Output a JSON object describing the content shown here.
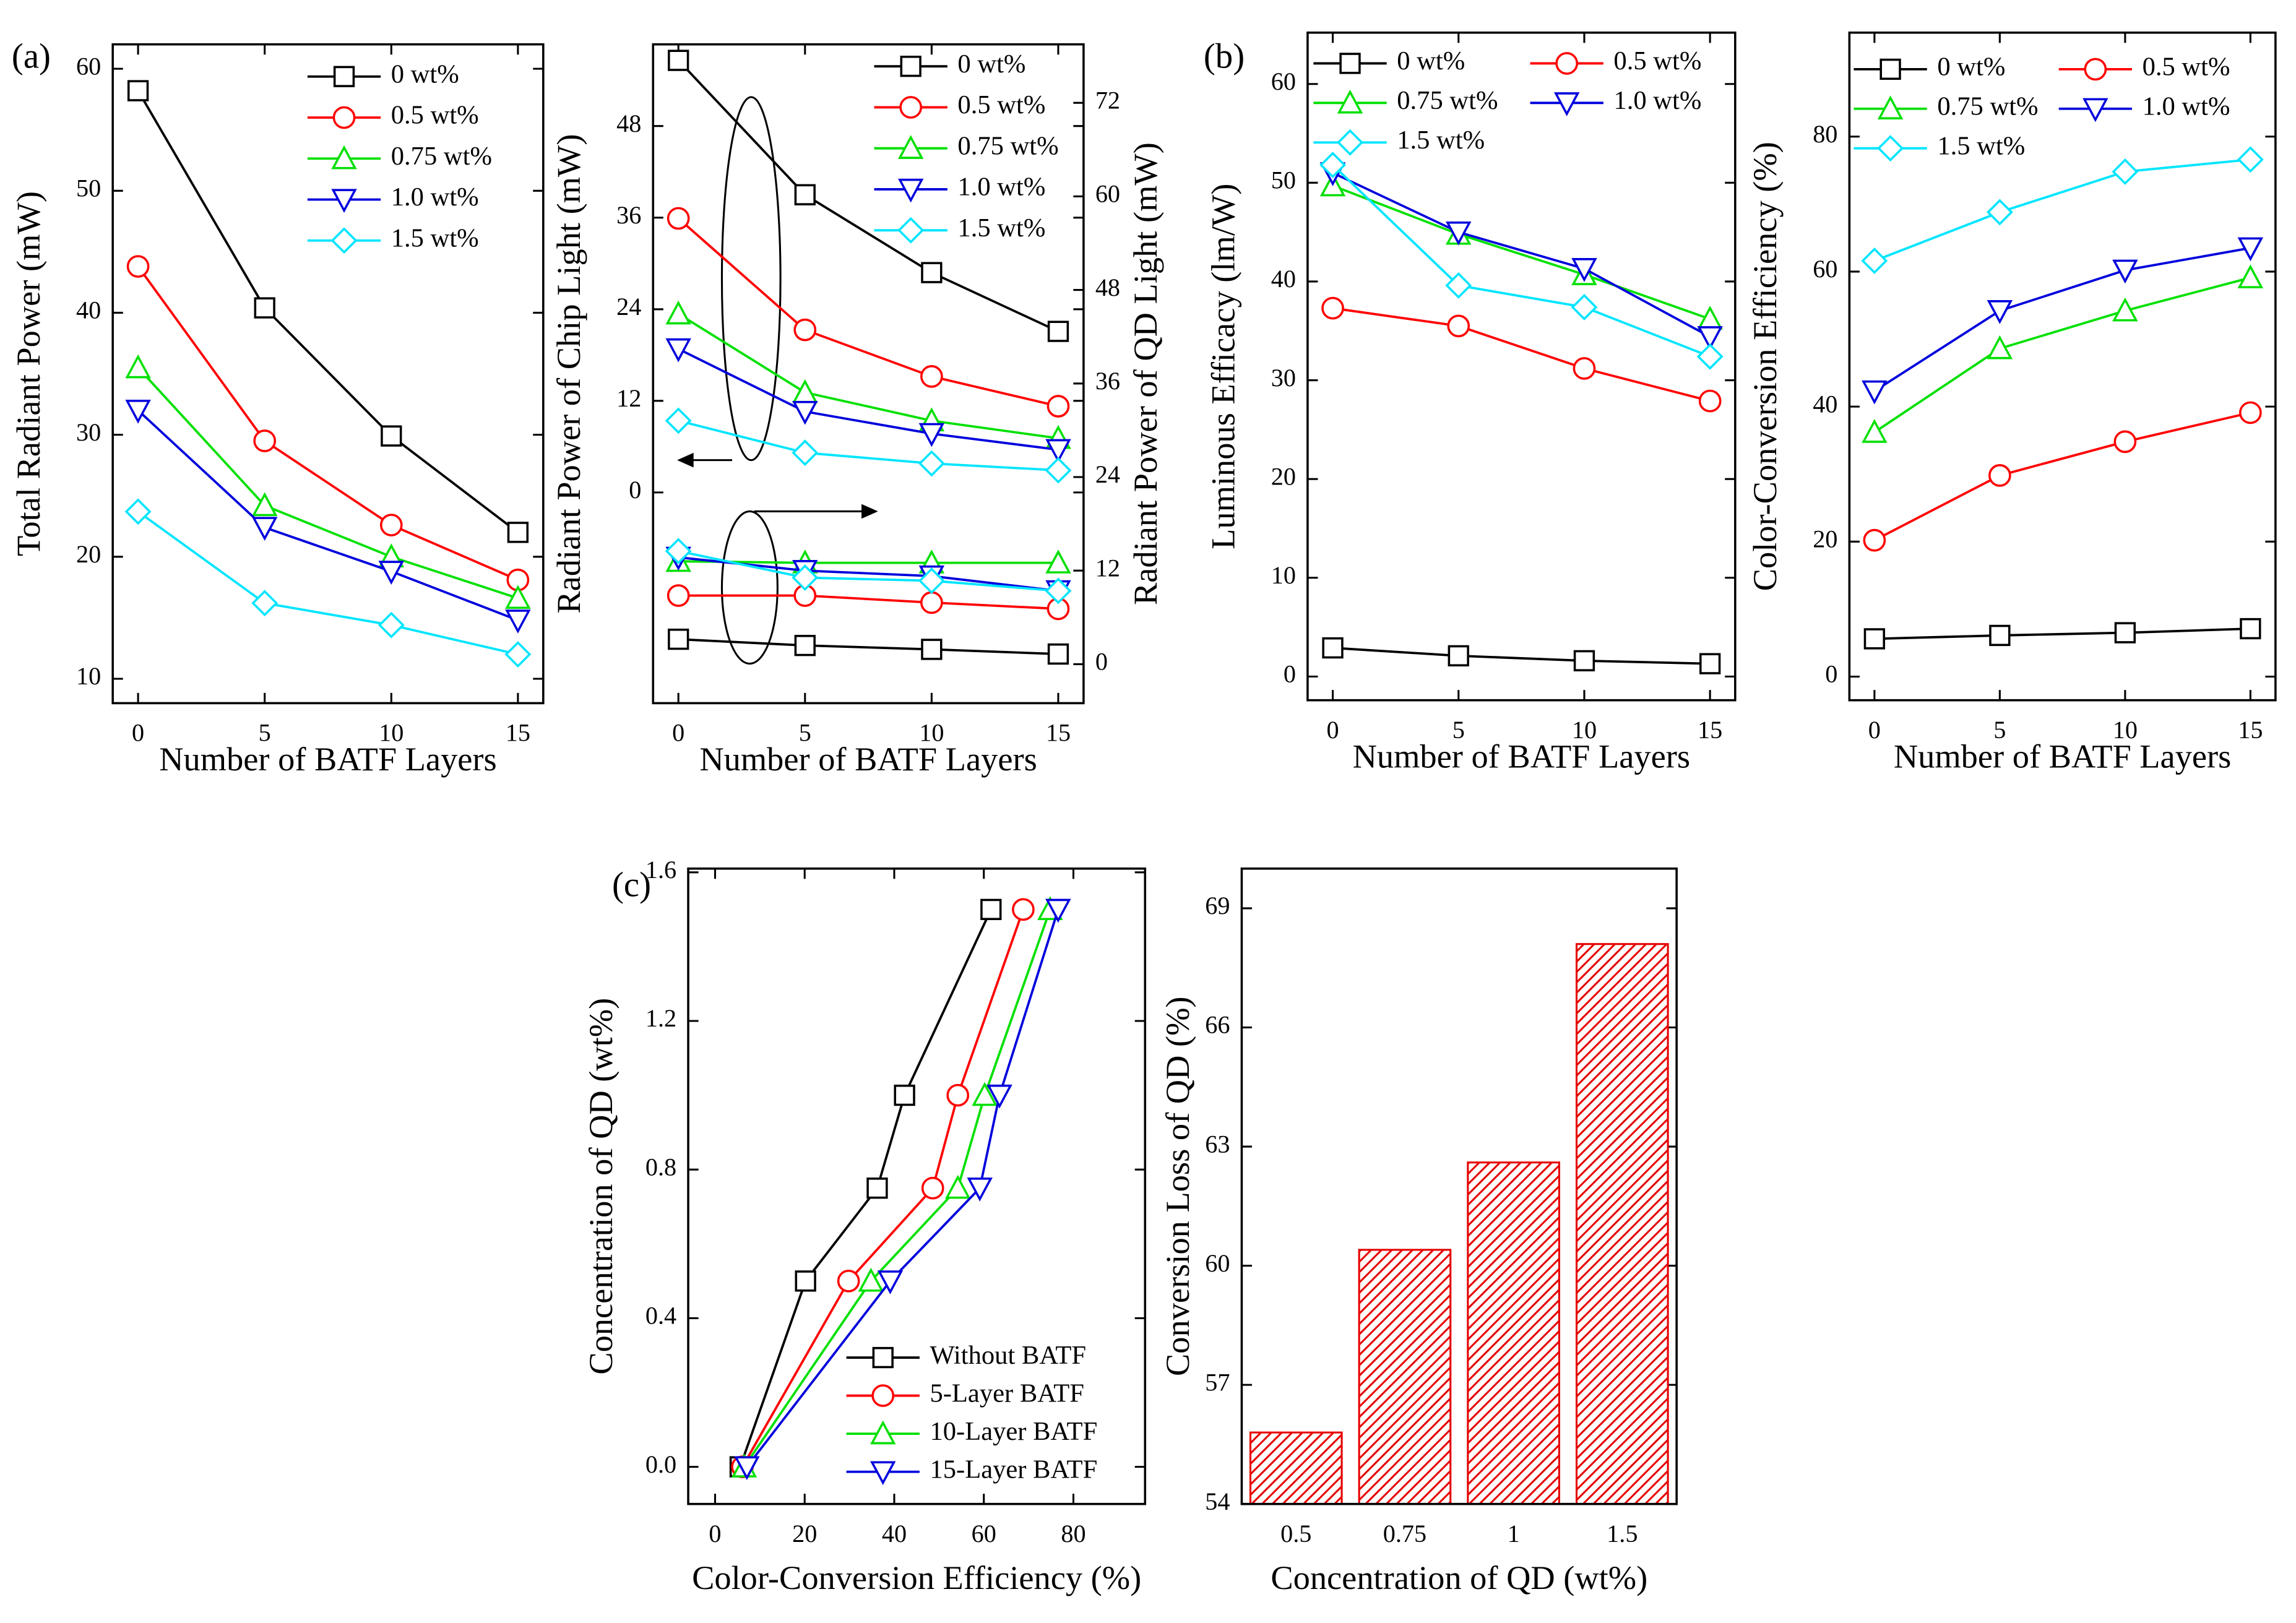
{
  "chart_data": [
    {
      "type": "line",
      "panel": "(a)",
      "xlabel": "Number of BATF Layers",
      "ylabel": "Total Radiant Power (mW)",
      "x": [
        0,
        5,
        10,
        15
      ],
      "xlim": [
        -1,
        16
      ],
      "xticks": [
        0,
        5,
        10,
        15
      ],
      "ylim": [
        8,
        62
      ],
      "yticks": [
        10,
        20,
        30,
        40,
        50,
        60
      ],
      "legend": "upper right",
      "series": [
        {
          "name": "0 wt%",
          "color": "#000000",
          "marker": "square",
          "values": [
            58.2,
            40.4,
            29.9,
            22.0
          ]
        },
        {
          "name": "0.5 wt%",
          "color": "#ff0000",
          "marker": "circle",
          "values": [
            43.8,
            29.5,
            22.6,
            18.1
          ]
        },
        {
          "name": "0.75 wt%",
          "color": "#00e000",
          "marker": "triangle",
          "values": [
            35.5,
            24.2,
            20.0,
            16.6
          ]
        },
        {
          "name": "1.0 wt%",
          "color": "#0000dd",
          "marker": "triangle-down",
          "values": [
            32.0,
            22.4,
            18.8,
            14.8
          ]
        },
        {
          "name": "1.5 wt%",
          "color": "#00e5ff",
          "marker": "diamond",
          "values": [
            23.7,
            16.2,
            14.4,
            12.0
          ]
        }
      ]
    },
    {
      "type": "line",
      "xlabel": "Number of BATF Layers",
      "ylabel": "Radiant Power of Chip Light (mW)",
      "y2label": "Radiant Power of QD Light (mW)",
      "x": [
        0,
        5,
        10,
        15
      ],
      "xlim": [
        -1,
        16
      ],
      "xticks": [
        0,
        5,
        10,
        15
      ],
      "ylim": [
        -27.6,
        58.7
      ],
      "yticks": [
        0,
        12,
        24,
        36,
        48
      ],
      "y2lim": [
        -5,
        79.5
      ],
      "y2ticks": [
        0,
        12,
        24,
        36,
        48,
        60,
        72
      ],
      "legend": "upper right",
      "series": [
        {
          "name": "0 wt%",
          "color": "#000000",
          "marker": "square",
          "values": [
            56.6,
            39.0,
            28.8,
            21.1
          ]
        },
        {
          "name": "0.5 wt%",
          "color": "#ff0000",
          "marker": "circle",
          "values": [
            35.9,
            21.3,
            15.2,
            11.3
          ]
        },
        {
          "name": "0.75 wt%",
          "color": "#00e000",
          "marker": "triangle",
          "values": [
            23.4,
            13.1,
            9.4,
            7.1
          ]
        },
        {
          "name": "1.0 wt%",
          "color": "#0000dd",
          "marker": "triangle-down",
          "values": [
            18.8,
            10.6,
            7.7,
            5.6
          ]
        },
        {
          "name": "1.5 wt%",
          "color": "#00e5ff",
          "marker": "diamond",
          "values": [
            9.4,
            5.2,
            3.8,
            2.9
          ]
        },
        {
          "color": "#000000",
          "marker": "square",
          "axis": "y2",
          "values": [
            3.2,
            2.4,
            1.9,
            1.3
          ]
        },
        {
          "color": "#ff0000",
          "marker": "circle",
          "axis": "y2",
          "values": [
            8.8,
            8.8,
            7.9,
            7.1
          ]
        },
        {
          "color": "#00e000",
          "marker": "triangle",
          "axis": "y2",
          "values": [
            13.2,
            13.0,
            13.0,
            13.0
          ]
        },
        {
          "color": "#0000dd",
          "marker": "triangle-down",
          "axis": "y2",
          "values": [
            13.7,
            12.0,
            11.3,
            9.4
          ]
        },
        {
          "color": "#00e5ff",
          "marker": "diamond",
          "axis": "y2",
          "values": [
            14.5,
            11.1,
            10.7,
            9.4
          ]
        }
      ]
    },
    {
      "type": "line",
      "panel": "(b)",
      "xlabel": "Number of BATF Layers",
      "ylabel": "Luminous Efficacy (lm/W)",
      "x": [
        0,
        5,
        10,
        15
      ],
      "xlim": [
        -1,
        16
      ],
      "xticks": [
        0,
        5,
        10,
        15
      ],
      "ylim": [
        -2.4,
        65.2
      ],
      "yticks": [
        0,
        10,
        20,
        30,
        40,
        50,
        60
      ],
      "legend": "upper left",
      "series": [
        {
          "name": "0 wt%",
          "color": "#000000",
          "marker": "square",
          "values": [
            2.9,
            2.1,
            1.6,
            1.3
          ]
        },
        {
          "name": "0.5 wt%",
          "color": "#ff0000",
          "marker": "circle",
          "values": [
            37.3,
            35.5,
            31.2,
            27.9
          ]
        },
        {
          "name": "0.75 wt%",
          "color": "#00e000",
          "marker": "triangle",
          "values": [
            49.7,
            44.8,
            40.7,
            36.2
          ]
        },
        {
          "name": "1.0 wt%",
          "color": "#0000dd",
          "marker": "triangle-down",
          "values": [
            51.0,
            45.0,
            41.3,
            34.4
          ]
        },
        {
          "name": "1.5 wt%",
          "color": "#00e5ff",
          "marker": "diamond",
          "values": [
            51.8,
            39.6,
            37.4,
            32.4
          ]
        }
      ]
    },
    {
      "type": "line",
      "xlabel": "Number of BATF Layers",
      "ylabel": "Color-Conversion Efficiency (%)",
      "x": [
        0,
        5,
        10,
        15
      ],
      "xlim": [
        -1,
        16
      ],
      "xticks": [
        0,
        5,
        10,
        15
      ],
      "ylim": [
        -3.5,
        95.4
      ],
      "yticks": [
        0,
        20,
        40,
        60,
        80
      ],
      "legend": "upper left",
      "series": [
        {
          "name": "0 wt%",
          "color": "#000000",
          "marker": "square",
          "values": [
            5.6,
            6.1,
            6.5,
            7.1
          ]
        },
        {
          "name": "0.5 wt%",
          "color": "#ff0000",
          "marker": "circle",
          "values": [
            20.2,
            29.8,
            34.8,
            39.1
          ]
        },
        {
          "name": "0.75 wt%",
          "color": "#00e000",
          "marker": "triangle",
          "values": [
            36.2,
            48.6,
            54.2,
            59.1
          ]
        },
        {
          "name": "1.0 wt%",
          "color": "#0000dd",
          "marker": "triangle-down",
          "values": [
            42.3,
            54.2,
            60.2,
            63.5
          ]
        },
        {
          "name": "1.5 wt%",
          "color": "#00e5ff",
          "marker": "diamond",
          "values": [
            61.6,
            68.8,
            74.8,
            76.6
          ]
        }
      ]
    },
    {
      "type": "line",
      "panel": "(c)",
      "xlabel": "Color-Conversion Efficiency (%)",
      "ylabel": "Concentration of QD (wt%)",
      "xlim": [
        -6,
        96
      ],
      "xticks": [
        0,
        20,
        40,
        60,
        80
      ],
      "ylim": [
        -0.1,
        1.61
      ],
      "yticks": [
        {
          "value": 0,
          "label": "0.0"
        },
        0.4,
        0.8,
        1.2,
        1.6
      ],
      "legend": "lower right",
      "series": [
        {
          "name": "Without BATF",
          "color": "#000000",
          "marker": "square",
          "x": [
            5.6,
            20.2,
            36.2,
            42.3,
            61.6
          ],
          "values": [
            0,
            0.5,
            0.75,
            1.0,
            1.5
          ]
        },
        {
          "name": "5-Layer BATF",
          "color": "#ff0000",
          "marker": "circle",
          "x": [
            6.1,
            29.8,
            48.6,
            54.2,
            68.8
          ],
          "values": [
            0,
            0.5,
            0.75,
            1.0,
            1.5
          ]
        },
        {
          "name": "10-Layer BATF",
          "color": "#00e000",
          "marker": "triangle",
          "x": [
            6.5,
            34.8,
            54.2,
            60.2,
            74.8
          ],
          "values": [
            0,
            0.5,
            0.75,
            1.0,
            1.5
          ]
        },
        {
          "name": "15-Layer BATF",
          "color": "#0000dd",
          "marker": "triangle-down",
          "x": [
            7.1,
            39.1,
            59.1,
            63.5,
            76.6
          ],
          "values": [
            0,
            0.5,
            0.75,
            1.0,
            1.5
          ]
        }
      ]
    },
    {
      "type": "bar",
      "xlabel": "Concentration of QD (wt%)",
      "ylabel": "Conversion Loss of QD (%)",
      "categories": [
        "0.5",
        "0.75",
        "1",
        "1.5"
      ],
      "values": [
        55.8,
        60.4,
        62.6,
        68.1
      ],
      "color": "#e60000",
      "ylim": [
        54,
        70
      ],
      "yticks": [
        54,
        57,
        60,
        63,
        66,
        69
      ]
    }
  ]
}
